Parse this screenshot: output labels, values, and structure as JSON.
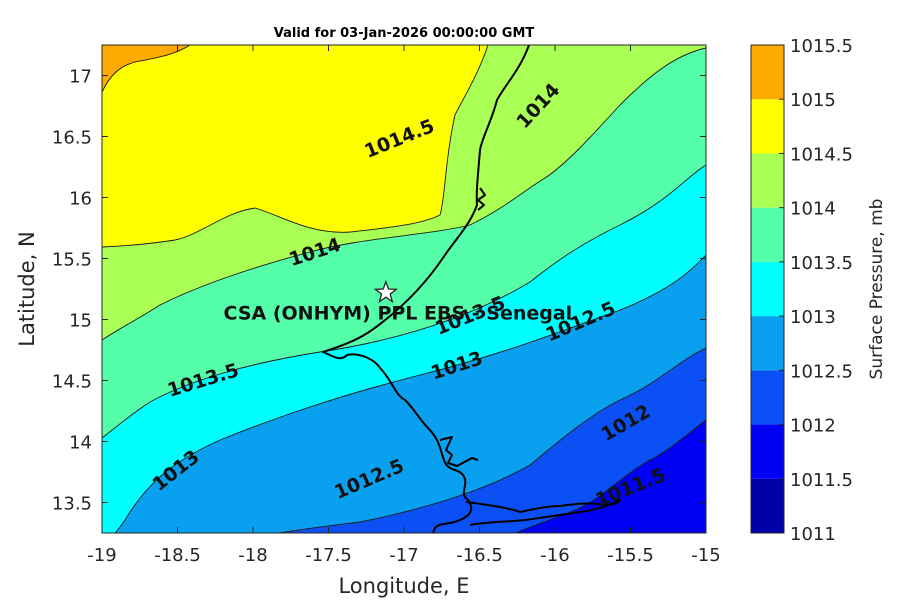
{
  "chart_data": {
    "type": "filled-contour-map",
    "title": "Valid for 03-Jan-2026 00:00:00 GMT",
    "xlabel": "Longitude, E",
    "ylabel": "Latitude, N",
    "xlim": [
      -19,
      -15
    ],
    "ylim": [
      13.25,
      17.25
    ],
    "x_ticks": [
      -19,
      -18.5,
      -18,
      -17.5,
      -17,
      -16.5,
      -16,
      -15.5,
      -15
    ],
    "y_ticks": [
      13.5,
      14,
      14.5,
      15,
      15.5,
      16,
      16.5,
      17
    ],
    "colorbar": {
      "label": "Surface Pressure, mb",
      "levels": [
        1011,
        1011.5,
        1012,
        1012.5,
        1013,
        1013.5,
        1014,
        1014.5,
        1015,
        1015.5
      ],
      "colors": [
        "#0000aa",
        "#0000f5",
        "#0a50f5",
        "#0aa0f0",
        "#00ffff",
        "#55ffaa",
        "#aaff55",
        "#ffff00",
        "#ffaa00",
        "#ff5500"
      ]
    },
    "contour_labels": [
      {
        "text": "1014.5",
        "lon": -17.03,
        "lat": 16.48,
        "angle": -22
      },
      {
        "text": "1014",
        "lon": -16.11,
        "lat": 16.75,
        "angle": -47
      },
      {
        "text": "1014",
        "lon": -17.59,
        "lat": 15.55,
        "angle": -18
      },
      {
        "text": "1013.5",
        "lon": -16.56,
        "lat": 15.03,
        "angle": -22
      },
      {
        "text": "1013.5",
        "lon": -18.33,
        "lat": 14.5,
        "angle": -17
      },
      {
        "text": "1013",
        "lon": -16.65,
        "lat": 14.62,
        "angle": -18
      },
      {
        "text": "1013",
        "lon": -18.51,
        "lat": 13.76,
        "angle": -38
      },
      {
        "text": "1012.5",
        "lon": -15.83,
        "lat": 14.98,
        "angle": -23
      },
      {
        "text": "1012.5",
        "lon": -17.23,
        "lat": 13.69,
        "angle": -23
      },
      {
        "text": "1012",
        "lon": -15.53,
        "lat": 14.15,
        "angle": -30
      },
      {
        "text": "1011.5",
        "lon": -15.5,
        "lat": 13.62,
        "angle": -22
      }
    ],
    "site": {
      "name": "CSA (ONHYM) PPL EBS - Senegal",
      "lon": -17.12,
      "lat": 15.22,
      "marker": "star"
    }
  }
}
